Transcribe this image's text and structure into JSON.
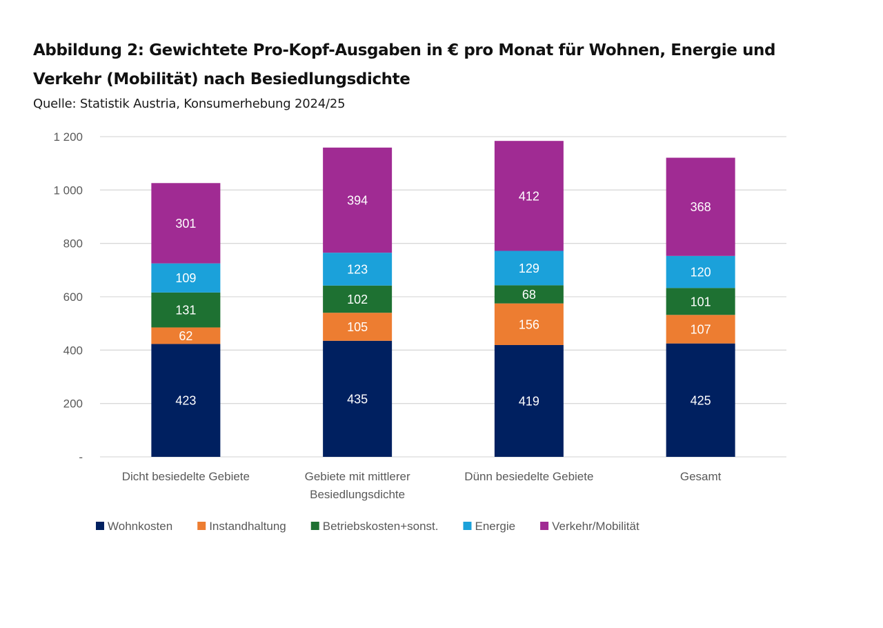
{
  "header": {
    "title": "Abbildung 2: Gewichtete Pro-Kopf-Ausgaben in € pro Monat für Wohnen, Energie und Verkehr (Mobilität) nach Besiedlungsdichte",
    "source": "Quelle: Statistik Austria, Konsumerhebung 2024/25"
  },
  "chart_data": {
    "type": "bar",
    "stacked": true,
    "title": "Abbildung 2: Gewichtete Pro-Kopf-Ausgaben in € pro Monat für Wohnen, Energie und Verkehr (Mobilität) nach Besiedlungsdichte",
    "subtitle": "Quelle: Statistik Austria, Konsumerhebung 2024/25",
    "xlabel": "",
    "ylabel": "",
    "categories": [
      [
        "Dicht besiedelte Gebiete"
      ],
      [
        "Gebiete mit mittlerer",
        "Besiedlungsdichte"
      ],
      [
        "Dünn besiedelte Gebiete"
      ],
      [
        "Gesamt"
      ]
    ],
    "series": [
      {
        "name": "Wohnkosten",
        "color": "#002060",
        "values": [
          423,
          435,
          419,
          425
        ]
      },
      {
        "name": "Instandhaltung",
        "color": "#ED7D31",
        "values": [
          62,
          105,
          156,
          107
        ]
      },
      {
        "name": "Betriebskosten+sonst.",
        "color": "#1E7132",
        "values": [
          131,
          102,
          68,
          101
        ]
      },
      {
        "name": "Energie",
        "color": "#1BA1DA",
        "values": [
          109,
          123,
          129,
          120
        ]
      },
      {
        "name": "Verkehr/Mobilität",
        "color": "#A02B93",
        "values": [
          301,
          394,
          412,
          368
        ]
      }
    ],
    "ylim": [
      0,
      1200
    ],
    "yticks": [
      0,
      200,
      400,
      600,
      800,
      1000,
      1200
    ],
    "ytick_labels": [
      "-",
      "200",
      "400",
      "600",
      "800",
      "1 000",
      "1 200"
    ],
    "grid": true,
    "data_labels": true,
    "legend": "bottom"
  }
}
